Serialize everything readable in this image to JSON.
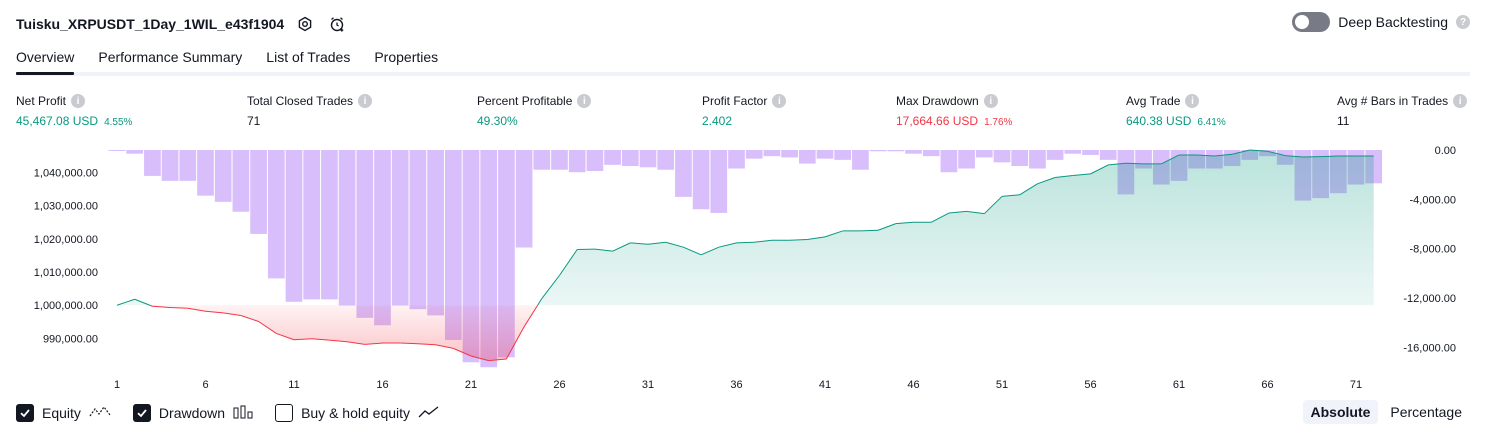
{
  "header": {
    "title": "Tuisku_XRPUSDT_1Day_1WIL_e43f1904",
    "deep_label": "Deep Backtesting"
  },
  "tabs": [
    {
      "label": "Overview"
    },
    {
      "label": "Performance Summary"
    },
    {
      "label": "List of Trades"
    },
    {
      "label": "Properties"
    }
  ],
  "metrics": {
    "net_profit": {
      "label": "Net Profit",
      "value": "45,467.08 USD",
      "sub": "4.55%"
    },
    "closed_trades": {
      "label": "Total Closed Trades",
      "value": "71"
    },
    "percent_profitable": {
      "label": "Percent Profitable",
      "value": "49.30%"
    },
    "profit_factor": {
      "label": "Profit Factor",
      "value": "2.402"
    },
    "max_drawdown": {
      "label": "Max Drawdown",
      "value": "17,664.66 USD",
      "sub": "1.76%"
    },
    "avg_trade": {
      "label": "Avg Trade",
      "value": "640.38 USD",
      "sub": "6.41%"
    },
    "avg_bars": {
      "label": "Avg # Bars in Trades",
      "value": "11"
    }
  },
  "legend": {
    "equity": "Equity",
    "drawdown": "Drawdown",
    "buy_hold": "Buy & hold equity"
  },
  "mode": {
    "absolute": "Absolute",
    "percentage": "Percentage"
  },
  "colors": {
    "profit": "#089981",
    "loss": "#f23645",
    "drawdown_bar": "#d1b3fa",
    "equity_area": "#cfeee6",
    "equity_loss_area": "#fcd5d8"
  },
  "chart_data": {
    "type": "area",
    "x_ticks": [
      "1",
      "6",
      "11",
      "16",
      "21",
      "26",
      "31",
      "36",
      "41",
      "46",
      "51",
      "56",
      "61",
      "66",
      "71"
    ],
    "y_left_ticks": [
      "1,040,000.00",
      "1,030,000.00",
      "1,020,000.00",
      "1,010,000.00",
      "1,000,000.00",
      "990,000.00"
    ],
    "y_right_ticks": [
      "0.00",
      "-4,000.00",
      "-8,000.00",
      "-12,000.00",
      "-16,000.00"
    ],
    "y_left_range": [
      985000,
      1048000
    ],
    "y_right_range": [
      -17500,
      0
    ],
    "baseline": 1000000,
    "x": [
      1,
      2,
      3,
      4,
      5,
      6,
      7,
      8,
      9,
      10,
      11,
      12,
      13,
      14,
      15,
      16,
      17,
      18,
      19,
      20,
      21,
      22,
      23,
      24,
      25,
      26,
      27,
      28,
      29,
      30,
      31,
      32,
      33,
      34,
      35,
      36,
      37,
      38,
      39,
      40,
      41,
      42,
      43,
      44,
      45,
      46,
      47,
      48,
      49,
      50,
      51,
      52,
      53,
      54,
      55,
      56,
      57,
      58,
      59,
      60,
      61,
      62,
      63,
      64,
      65,
      66,
      67,
      68,
      69,
      70,
      71,
      72
    ],
    "series": [
      {
        "name": "Equity",
        "axis": "left",
        "values": [
          1000000,
          1001800,
          999700,
          999300,
          999100,
          998200,
          997700,
          996900,
          995100,
          991500,
          989600,
          989900,
          989500,
          989000,
          988200,
          988600,
          988600,
          988400,
          988100,
          987000,
          984700,
          983300,
          983800,
          993500,
          1002000,
          1009000,
          1016800,
          1016900,
          1016300,
          1018800,
          1018400,
          1019000,
          1017500,
          1015200,
          1017500,
          1018800,
          1019000,
          1019600,
          1019600,
          1019800,
          1020600,
          1022400,
          1022400,
          1022600,
          1024600,
          1025000,
          1025000,
          1027800,
          1028300,
          1027600,
          1032800,
          1033300,
          1036600,
          1038500,
          1039100,
          1039600,
          1042300,
          1042800,
          1042600,
          1042600,
          1045300,
          1045300,
          1045000,
          1045500,
          1046800,
          1046400,
          1045100,
          1044700,
          1044800,
          1045000,
          1045000,
          1045000
        ]
      },
      {
        "name": "Drawdown",
        "axis": "right",
        "values": [
          0,
          -300,
          -2100,
          -2500,
          -2500,
          -3700,
          -4200,
          -5000,
          -6800,
          -10400,
          -12300,
          -12100,
          -12100,
          -12600,
          -13600,
          -14200,
          -12600,
          -12900,
          -13400,
          -15400,
          -17200,
          -17600,
          -16800,
          -7900,
          -1600,
          -1600,
          -1800,
          -1700,
          -1200,
          -1300,
          -1400,
          -1600,
          -3800,
          -4800,
          -5100,
          -1500,
          -700,
          -500,
          -600,
          -1100,
          -700,
          -800,
          -1600,
          -100,
          -100,
          -300,
          -500,
          -1800,
          -1500,
          -600,
          -1000,
          -1300,
          -1500,
          -800,
          -300,
          -400,
          -800,
          -3600,
          -1500,
          -2800,
          -2500,
          -1500,
          -1500,
          -1300,
          -800,
          -500,
          -1200,
          -4100,
          -3900,
          -3500,
          -2800,
          -2700
        ]
      }
    ]
  }
}
